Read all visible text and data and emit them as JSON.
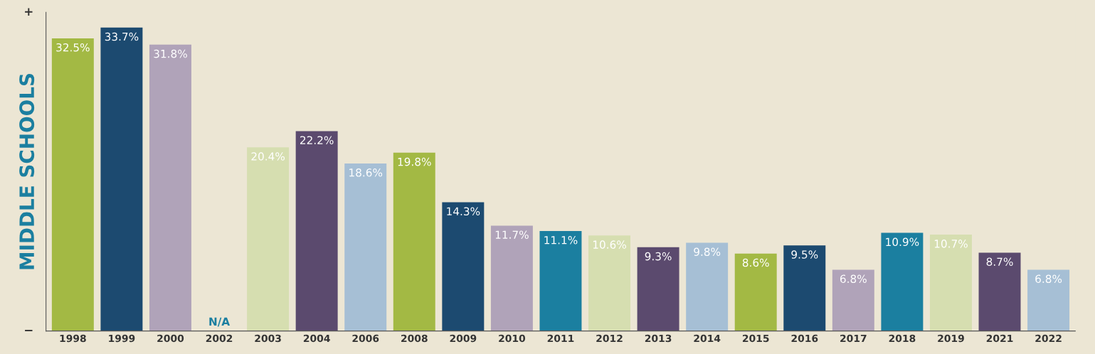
{
  "chart_data": {
    "type": "bar",
    "ylabel": "MIDDLE SCHOOLS",
    "categories": [
      "1998",
      "1999",
      "2000",
      "2002",
      "2003",
      "2004",
      "2006",
      "2008",
      "2009",
      "2010",
      "2011",
      "2012",
      "2013",
      "2014",
      "2015",
      "2016",
      "2017",
      "2018",
      "2019",
      "2021",
      "2022"
    ],
    "values": [
      32.5,
      33.7,
      31.8,
      null,
      20.4,
      22.2,
      18.6,
      19.8,
      14.3,
      11.7,
      11.1,
      10.6,
      9.3,
      9.8,
      8.6,
      9.5,
      6.8,
      10.9,
      10.7,
      8.7,
      6.8
    ],
    "value_labels": [
      "32.5%",
      "33.7%",
      "31.8%",
      "N/A",
      "20.4%",
      "22.2%",
      "18.6%",
      "19.8%",
      "14.3%",
      "11.7%",
      "11.1%",
      "10.6%",
      "9.3%",
      "9.8%",
      "8.6%",
      "9.5%",
      "6.8%",
      "10.9%",
      "10.7%",
      "8.7%",
      "6.8%"
    ],
    "colors": [
      "#a3b944",
      "#1c4a70",
      "#b0a3b9",
      "#1b7fa0",
      "#d6deb0",
      "#5b4a6e",
      "#a6bfd5",
      "#a3b944",
      "#1c4a70",
      "#b0a3b9",
      "#1b7fa0",
      "#d6deb0",
      "#5b4a6e",
      "#a6bfd5",
      "#a3b944",
      "#1c4a70",
      "#b0a3b9",
      "#1b7fa0",
      "#d6deb0",
      "#5b4a6e",
      "#a6bfd5"
    ],
    "annotations": [
      "+",
      "−"
    ],
    "grid": false,
    "legend": false
  }
}
